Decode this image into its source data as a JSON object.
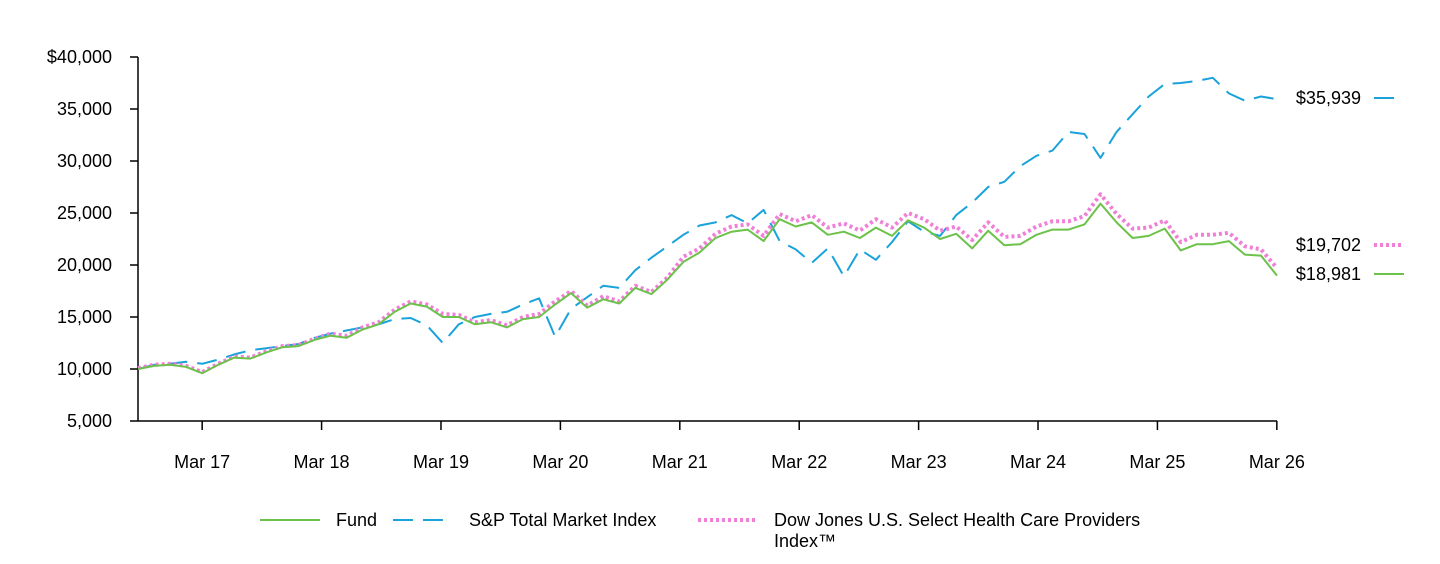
{
  "chart_data": {
    "type": "line",
    "x_tick_labels": [
      "Mar 17",
      "Mar 18",
      "Mar 19",
      "Mar 20",
      "Mar 21",
      "Mar 22",
      "Mar 23",
      "Mar 24",
      "Mar 25",
      "Mar 26"
    ],
    "y_tick_labels": [
      "$40,000",
      "35,000",
      "30,000",
      "25,000",
      "20,000",
      "15,000",
      "10,000",
      "5,000"
    ],
    "ylim": [
      5000,
      40000
    ],
    "series": [
      {
        "name": "Fund",
        "color": "#6cc24a",
        "dash": "solid",
        "end_label": "$18,981",
        "points": [
          [
            0,
            10000
          ],
          [
            3,
            10300
          ],
          [
            6,
            10400
          ],
          [
            9,
            10200
          ],
          [
            12,
            9600
          ],
          [
            15,
            10400
          ],
          [
            18,
            11100
          ],
          [
            21,
            11000
          ],
          [
            24,
            11600
          ],
          [
            27,
            12100
          ],
          [
            30,
            12200
          ],
          [
            33,
            12800
          ],
          [
            36,
            13200
          ],
          [
            39,
            13000
          ],
          [
            42,
            13800
          ],
          [
            45,
            14300
          ],
          [
            48,
            15500
          ],
          [
            51,
            16300
          ],
          [
            54,
            16000
          ],
          [
            57,
            15000
          ],
          [
            60,
            15000
          ],
          [
            63,
            14300
          ],
          [
            66,
            14500
          ],
          [
            69,
            14000
          ],
          [
            72,
            14800
          ],
          [
            75,
            15000
          ],
          [
            78,
            16200
          ],
          [
            81,
            17300
          ],
          [
            84,
            15900
          ],
          [
            87,
            16700
          ],
          [
            90,
            16300
          ],
          [
            93,
            17800
          ],
          [
            96,
            17200
          ],
          [
            99,
            18600
          ],
          [
            102,
            20300
          ],
          [
            105,
            21200
          ],
          [
            108,
            22600
          ],
          [
            111,
            23200
          ],
          [
            114,
            23400
          ],
          [
            117,
            22300
          ],
          [
            120,
            24400
          ],
          [
            123,
            23700
          ],
          [
            126,
            24100
          ],
          [
            129,
            22900
          ],
          [
            132,
            23200
          ],
          [
            135,
            22600
          ],
          [
            138,
            23600
          ],
          [
            141,
            22800
          ],
          [
            144,
            24300
          ],
          [
            147,
            23600
          ],
          [
            150,
            22500
          ],
          [
            153,
            23000
          ],
          [
            156,
            21600
          ],
          [
            159,
            23300
          ],
          [
            162,
            21900
          ],
          [
            165,
            22000
          ],
          [
            168,
            22900
          ],
          [
            171,
            23400
          ],
          [
            174,
            23400
          ],
          [
            177,
            23900
          ],
          [
            180,
            25900
          ],
          [
            183,
            24100
          ],
          [
            186,
            22600
          ],
          [
            189,
            22800
          ],
          [
            192,
            23500
          ],
          [
            195,
            21400
          ],
          [
            198,
            22000
          ],
          [
            201,
            22000
          ],
          [
            204,
            22300
          ],
          [
            207,
            21000
          ],
          [
            210,
            20900
          ],
          [
            213,
            18981
          ]
        ]
      },
      {
        "name": "S&P Total Market Index",
        "color": "#1aa3db",
        "dash": "long-dash",
        "end_label": "$35,939",
        "points": [
          [
            0,
            10000
          ],
          [
            3,
            10400
          ],
          [
            6,
            10500
          ],
          [
            9,
            10700
          ],
          [
            12,
            10500
          ],
          [
            15,
            10900
          ],
          [
            18,
            11400
          ],
          [
            21,
            11800
          ],
          [
            24,
            12000
          ],
          [
            27,
            12200
          ],
          [
            30,
            12400
          ],
          [
            33,
            13000
          ],
          [
            36,
            13400
          ],
          [
            39,
            13700
          ],
          [
            42,
            14000
          ],
          [
            45,
            14300
          ],
          [
            48,
            14800
          ],
          [
            51,
            14900
          ],
          [
            54,
            14200
          ],
          [
            57,
            12500
          ],
          [
            60,
            14300
          ],
          [
            63,
            15000
          ],
          [
            66,
            15300
          ],
          [
            69,
            15500
          ],
          [
            72,
            16200
          ],
          [
            75,
            16800
          ],
          [
            78,
            13100
          ],
          [
            81,
            15800
          ],
          [
            84,
            16900
          ],
          [
            87,
            18000
          ],
          [
            90,
            17800
          ],
          [
            93,
            19500
          ],
          [
            96,
            20700
          ],
          [
            99,
            21800
          ],
          [
            102,
            22900
          ],
          [
            105,
            23800
          ],
          [
            108,
            24100
          ],
          [
            111,
            24800
          ],
          [
            114,
            24000
          ],
          [
            117,
            25300
          ],
          [
            120,
            22300
          ],
          [
            123,
            21500
          ],
          [
            126,
            20200
          ],
          [
            129,
            21600
          ],
          [
            132,
            18900
          ],
          [
            135,
            21500
          ],
          [
            138,
            20500
          ],
          [
            141,
            22200
          ],
          [
            144,
            24200
          ],
          [
            147,
            23200
          ],
          [
            150,
            22800
          ],
          [
            153,
            24800
          ],
          [
            156,
            26000
          ],
          [
            159,
            27500
          ],
          [
            162,
            28000
          ],
          [
            165,
            29500
          ],
          [
            168,
            30500
          ],
          [
            171,
            31000
          ],
          [
            174,
            32800
          ],
          [
            177,
            32600
          ],
          [
            180,
            30300
          ],
          [
            183,
            32800
          ],
          [
            186,
            34500
          ],
          [
            189,
            36200
          ],
          [
            192,
            37400
          ],
          [
            195,
            37500
          ],
          [
            198,
            37700
          ],
          [
            201,
            38000
          ],
          [
            204,
            36500
          ],
          [
            207,
            35800
          ],
          [
            210,
            36200
          ],
          [
            213,
            35939
          ]
        ]
      },
      {
        "name": "Dow Jones U.S. Select Health Care Providers Index™",
        "color": "#f07fd8",
        "dash": "dotted",
        "end_label": "$19,702",
        "points": [
          [
            0,
            10100
          ],
          [
            3,
            10400
          ],
          [
            6,
            10500
          ],
          [
            9,
            10300
          ],
          [
            12,
            9700
          ],
          [
            15,
            10500
          ],
          [
            18,
            11200
          ],
          [
            21,
            11100
          ],
          [
            24,
            11700
          ],
          [
            27,
            12200
          ],
          [
            30,
            12300
          ],
          [
            33,
            12900
          ],
          [
            36,
            13400
          ],
          [
            39,
            13200
          ],
          [
            42,
            14000
          ],
          [
            45,
            14500
          ],
          [
            48,
            15700
          ],
          [
            51,
            16500
          ],
          [
            54,
            16200
          ],
          [
            57,
            15300
          ],
          [
            60,
            15200
          ],
          [
            63,
            14500
          ],
          [
            66,
            14700
          ],
          [
            69,
            14200
          ],
          [
            72,
            15000
          ],
          [
            75,
            15300
          ],
          [
            78,
            16500
          ],
          [
            81,
            17500
          ],
          [
            84,
            16100
          ],
          [
            87,
            17000
          ],
          [
            90,
            16500
          ],
          [
            93,
            18000
          ],
          [
            96,
            17400
          ],
          [
            99,
            18800
          ],
          [
            102,
            20800
          ],
          [
            105,
            21600
          ],
          [
            108,
            23000
          ],
          [
            111,
            23700
          ],
          [
            114,
            23900
          ],
          [
            117,
            22800
          ],
          [
            120,
            24900
          ],
          [
            123,
            24200
          ],
          [
            126,
            24800
          ],
          [
            129,
            23600
          ],
          [
            132,
            24000
          ],
          [
            135,
            23300
          ],
          [
            138,
            24400
          ],
          [
            141,
            23600
          ],
          [
            144,
            25000
          ],
          [
            147,
            24400
          ],
          [
            150,
            23300
          ],
          [
            153,
            23700
          ],
          [
            156,
            22400
          ],
          [
            159,
            24100
          ],
          [
            162,
            22700
          ],
          [
            165,
            22800
          ],
          [
            168,
            23700
          ],
          [
            171,
            24200
          ],
          [
            174,
            24200
          ],
          [
            177,
            24700
          ],
          [
            180,
            26800
          ],
          [
            183,
            24900
          ],
          [
            186,
            23500
          ],
          [
            189,
            23600
          ],
          [
            192,
            24300
          ],
          [
            195,
            22200
          ],
          [
            198,
            22900
          ],
          [
            201,
            22900
          ],
          [
            204,
            23100
          ],
          [
            207,
            21800
          ],
          [
            210,
            21500
          ],
          [
            213,
            19702
          ]
        ]
      }
    ],
    "grid": false,
    "legend_position": "bottom"
  }
}
